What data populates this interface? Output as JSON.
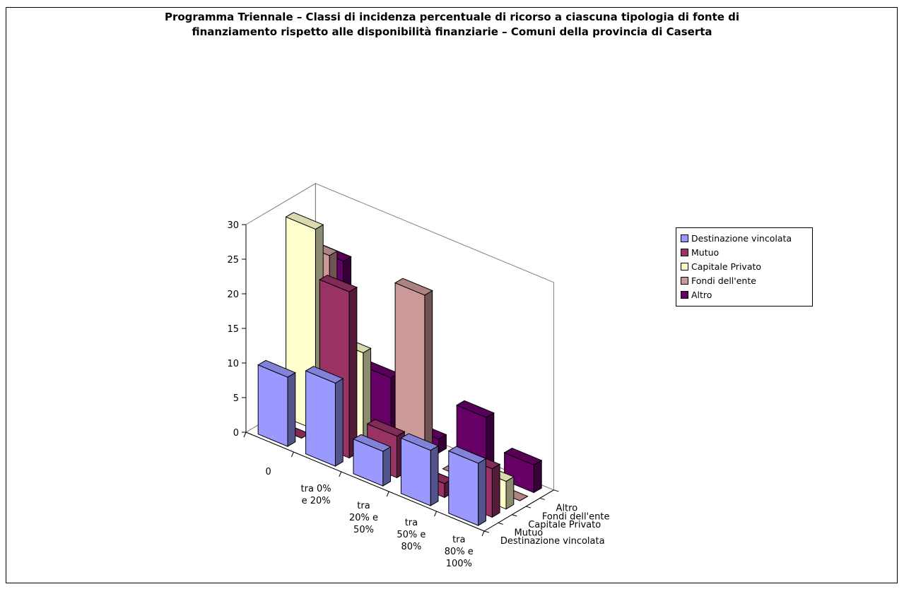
{
  "chart_data": {
    "type": "bar",
    "variant": "3d-clustered-bar",
    "title_lines": [
      "Programma Triennale – Classi di incidenza percentuale di ricorso a ciascuna tipologia di fonte di",
      "finanziamento rispetto alle disponibilità finanziarie – Comuni della provincia di Caserta"
    ],
    "categories": [
      [
        "0"
      ],
      [
        "tra 0%",
        "e 20%"
      ],
      [
        "tra",
        "20% e",
        "50%"
      ],
      [
        "tra",
        "50% e",
        "80%"
      ],
      [
        "tra",
        "80% e",
        "100%"
      ]
    ],
    "zlim": [
      0,
      30
    ],
    "z_ticks": [
      "0",
      "5",
      "10",
      "15",
      "20",
      "25",
      "30"
    ],
    "series": [
      {
        "name": "Destinazione vincolata",
        "color": "#9999ff",
        "values": [
          10,
          12,
          5,
          8,
          9
        ]
      },
      {
        "name": "Mutuo",
        "color": "#993366",
        "values": [
          0,
          24,
          6,
          2,
          7
        ]
      },
      {
        "name": "Capitale Privato",
        "color": "#ffffcc",
        "values": [
          29,
          14,
          1,
          0,
          4
        ]
      },
      {
        "name": "Fondi dell'ente",
        "color": "#cc9999",
        "values": [
          24,
          0,
          24,
          0,
          0
        ]
      },
      {
        "name": "Altro",
        "color": "#660066",
        "values": [
          22,
          8,
          2,
          8,
          4
        ]
      }
    ],
    "legend_position": "right",
    "grid": false
  }
}
